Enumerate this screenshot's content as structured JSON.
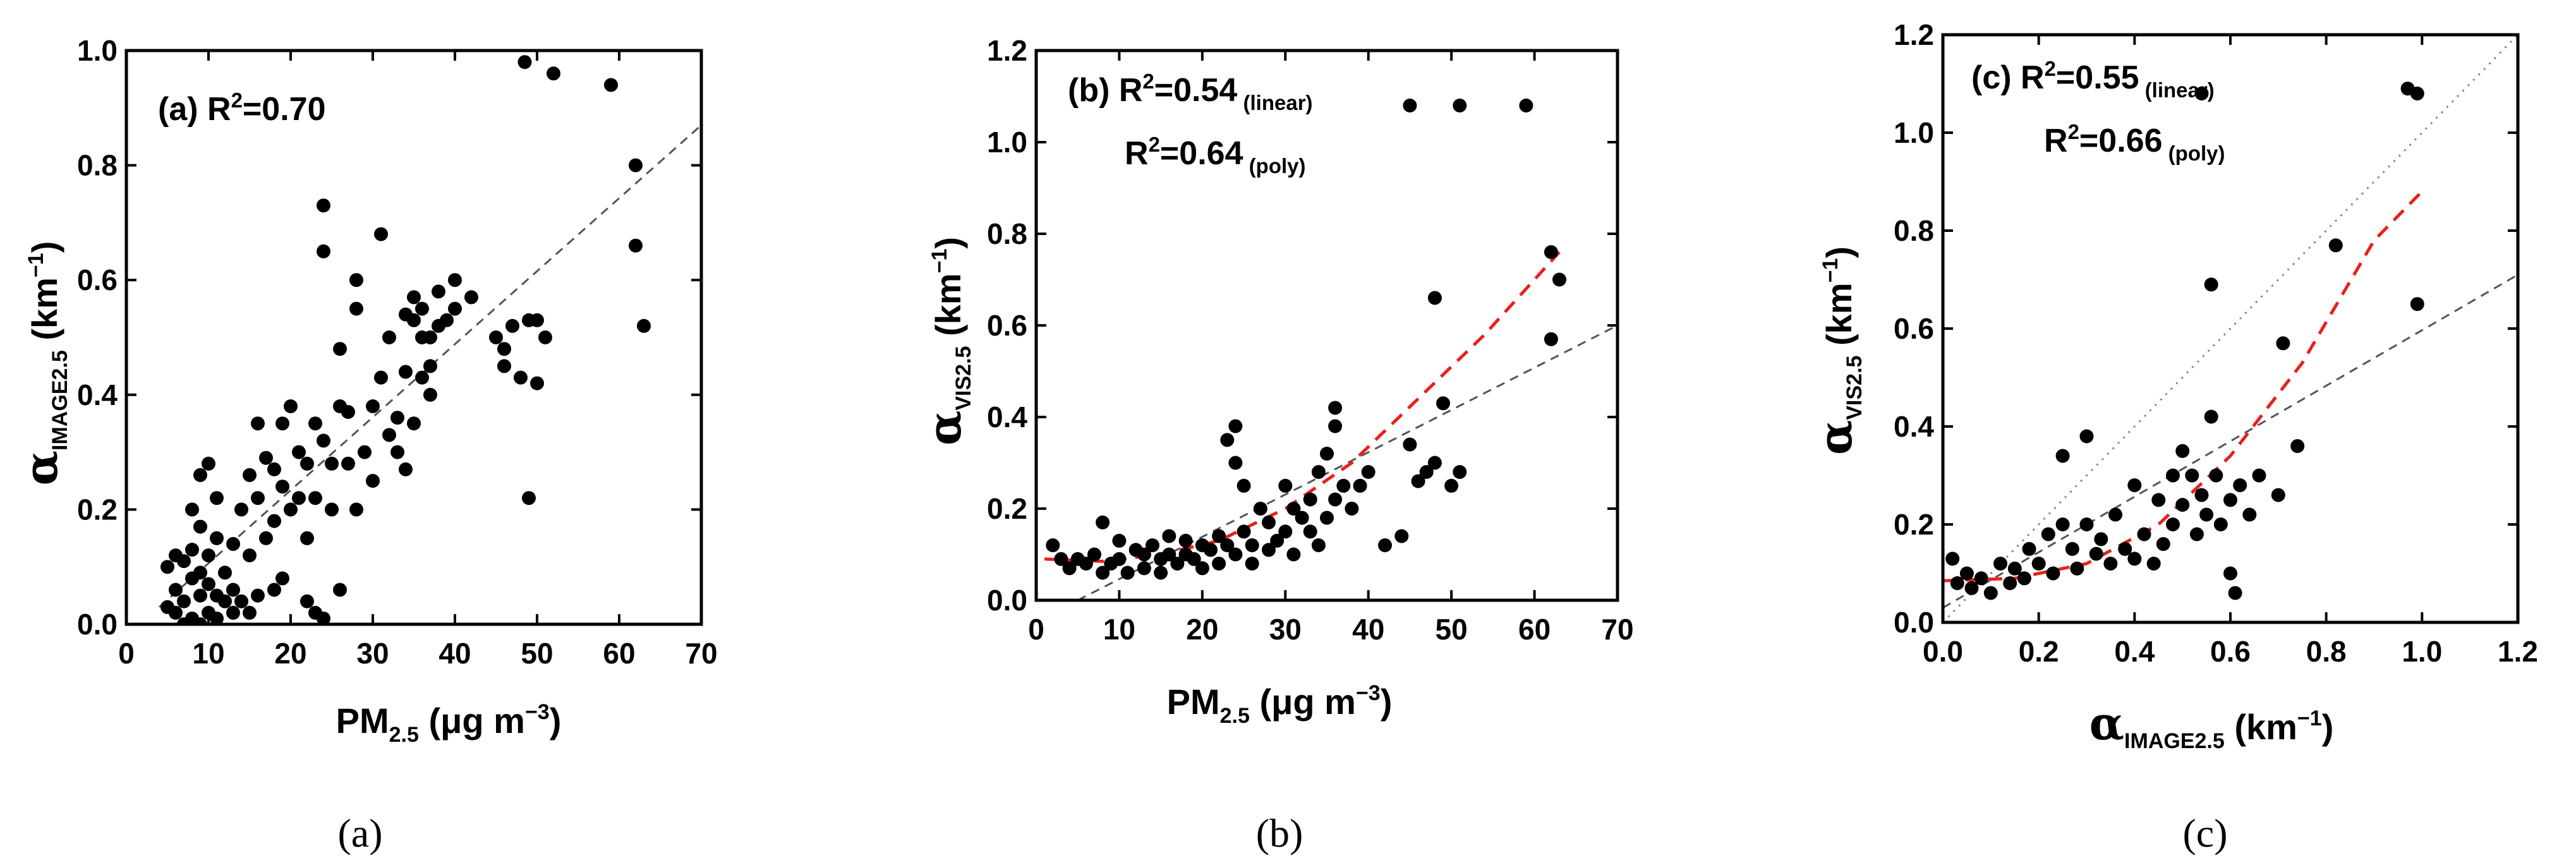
{
  "chart_data": [
    {
      "type": "scatter",
      "panel": "(a)",
      "annotation": {
        "text": "(a) R",
        "sup": "2",
        "tail": "=0.70"
      },
      "ylabel": {
        "symbol": "α",
        "sub": "IMAGE2.5",
        "unit": " (km",
        "unit_sup": "−1",
        "unit_end": ")"
      },
      "xlabel": {
        "main": "PM",
        "sub": "2.5",
        "unit": " (μg m",
        "unit_sup": "−3",
        "unit_end": ")"
      },
      "xlim": [
        0,
        70
      ],
      "ylim": [
        0,
        1.0
      ],
      "xticks": [
        0,
        10,
        20,
        30,
        40,
        50,
        60,
        70
      ],
      "xtick_labels": [
        "0",
        "10",
        "20",
        "30",
        "40",
        "50",
        "60",
        "70"
      ],
      "yticks": [
        0.0,
        0.2,
        0.4,
        0.6,
        0.8,
        1.0
      ],
      "ytick_labels": [
        "0.0",
        "0.2",
        "0.4",
        "0.6",
        "0.8",
        "1.0"
      ],
      "fits": [
        {
          "name": "linear",
          "color": "#555555",
          "dash": "14,10",
          "points": [
            [
              4,
              0.03
            ],
            [
              70,
              0.87
            ]
          ]
        }
      ],
      "points": [
        [
          5,
          0.1
        ],
        [
          5,
          0.03
        ],
        [
          6,
          0.12
        ],
        [
          6,
          0.02
        ],
        [
          6,
          0.06
        ],
        [
          7,
          0.11
        ],
        [
          7,
          0.04
        ],
        [
          7,
          0.0
        ],
        [
          8,
          0.2
        ],
        [
          8,
          0.13
        ],
        [
          8,
          0.08
        ],
        [
          8,
          0.01
        ],
        [
          9,
          0.26
        ],
        [
          9,
          0.17
        ],
        [
          9,
          0.09
        ],
        [
          9,
          0.05
        ],
        [
          9,
          0.0
        ],
        [
          10,
          0.28
        ],
        [
          10,
          0.12
        ],
        [
          10,
          0.02
        ],
        [
          10,
          0.07
        ],
        [
          11,
          0.22
        ],
        [
          11,
          0.15
        ],
        [
          11,
          0.05
        ],
        [
          11,
          0.01
        ],
        [
          12,
          0.09
        ],
        [
          12,
          0.04
        ],
        [
          13,
          0.14
        ],
        [
          13,
          0.06
        ],
        [
          13,
          0.02
        ],
        [
          14,
          0.2
        ],
        [
          14,
          0.04
        ],
        [
          15,
          0.26
        ],
        [
          15,
          0.12
        ],
        [
          15,
          0.02
        ],
        [
          16,
          0.35
        ],
        [
          16,
          0.22
        ],
        [
          16,
          0.05
        ],
        [
          17,
          0.15
        ],
        [
          17,
          0.29
        ],
        [
          18,
          0.27
        ],
        [
          18,
          0.18
        ],
        [
          18,
          0.06
        ],
        [
          19,
          0.24
        ],
        [
          19,
          0.35
        ],
        [
          19,
          0.08
        ],
        [
          20,
          0.38
        ],
        [
          20,
          0.2
        ],
        [
          21,
          0.22
        ],
        [
          21,
          0.3
        ],
        [
          22,
          0.04
        ],
        [
          22,
          0.15
        ],
        [
          22,
          0.28
        ],
        [
          23,
          0.02
        ],
        [
          23,
          0.22
        ],
        [
          23,
          0.35
        ],
        [
          24,
          0.73
        ],
        [
          24,
          0.65
        ],
        [
          24,
          0.32
        ],
        [
          24,
          0.01
        ],
        [
          25,
          0.28
        ],
        [
          25,
          0.2
        ],
        [
          26,
          0.06
        ],
        [
          26,
          0.38
        ],
        [
          26,
          0.48
        ],
        [
          27,
          0.28
        ],
        [
          27,
          0.37
        ],
        [
          28,
          0.55
        ],
        [
          28,
          0.6
        ],
        [
          28,
          0.2
        ],
        [
          29,
          0.3
        ],
        [
          30,
          0.38
        ],
        [
          30,
          0.25
        ],
        [
          31,
          0.43
        ],
        [
          31,
          0.68
        ],
        [
          32,
          0.33
        ],
        [
          32,
          0.5
        ],
        [
          33,
          0.3
        ],
        [
          33,
          0.36
        ],
        [
          34,
          0.54
        ],
        [
          34,
          0.44
        ],
        [
          34,
          0.27
        ],
        [
          35,
          0.53
        ],
        [
          35,
          0.57
        ],
        [
          35,
          0.35
        ],
        [
          36,
          0.5
        ],
        [
          36,
          0.55
        ],
        [
          36,
          0.43
        ],
        [
          37,
          0.5
        ],
        [
          37,
          0.45
        ],
        [
          37,
          0.4
        ],
        [
          38,
          0.52
        ],
        [
          38,
          0.58
        ],
        [
          39,
          0.53
        ],
        [
          40,
          0.6
        ],
        [
          40,
          0.55
        ],
        [
          42,
          0.57
        ],
        [
          45,
          0.5
        ],
        [
          46,
          0.48
        ],
        [
          46,
          0.45
        ],
        [
          47,
          0.52
        ],
        [
          48,
          0.43
        ],
        [
          49,
          0.53
        ],
        [
          49,
          0.22
        ],
        [
          50,
          0.42
        ],
        [
          50,
          0.53
        ],
        [
          51,
          0.5
        ],
        [
          48.5,
          0.98
        ],
        [
          52,
          0.96
        ],
        [
          59,
          0.94
        ],
        [
          62,
          0.8
        ],
        [
          62,
          0.66
        ],
        [
          63,
          0.52
        ]
      ]
    },
    {
      "type": "scatter",
      "panel": "(b)",
      "annotation_lines": [
        {
          "text": "(b) R",
          "sup": "2",
          "tail": "=0.54",
          "small": " (linear)"
        },
        {
          "text": "R",
          "sup": "2",
          "tail": "=0.64",
          "small": " (poly)"
        }
      ],
      "ylabel": {
        "symbol": "α",
        "sub": "VIS2.5",
        "unit": " (km",
        "unit_sup": "−1",
        "unit_end": ")"
      },
      "xlabel": {
        "main": "PM",
        "sub": "2.5",
        "unit": " (μg m",
        "unit_sup": "−3",
        "unit_end": ")"
      },
      "xlim": [
        0,
        70
      ],
      "ylim": [
        0,
        1.2
      ],
      "xticks": [
        0,
        10,
        20,
        30,
        40,
        50,
        60,
        70
      ],
      "xtick_labels": [
        "0",
        "10",
        "20",
        "30",
        "40",
        "50",
        "60",
        "70"
      ],
      "yticks": [
        0.0,
        0.2,
        0.4,
        0.6,
        0.8,
        1.0,
        1.2
      ],
      "ytick_labels": [
        "0.0",
        "0.2",
        "0.4",
        "0.6",
        "0.8",
        "1.0",
        "1.2"
      ],
      "fits": [
        {
          "name": "linear",
          "color": "#555555",
          "dash": "14,10",
          "points": [
            [
              5,
              0.0
            ],
            [
              70,
              0.6
            ]
          ]
        },
        {
          "name": "poly",
          "color": "#e8201c",
          "dash": "22,14",
          "points": [
            [
              1,
              0.09
            ],
            [
              8,
              0.085
            ],
            [
              15,
              0.1
            ],
            [
              22,
              0.13
            ],
            [
              30,
              0.2
            ],
            [
              38,
              0.3
            ],
            [
              46,
              0.44
            ],
            [
              54,
              0.58
            ],
            [
              63,
              0.76
            ]
          ]
        }
      ],
      "points": [
        [
          2,
          0.12
        ],
        [
          3,
          0.09
        ],
        [
          4,
          0.07
        ],
        [
          5,
          0.09
        ],
        [
          6,
          0.08
        ],
        [
          7,
          0.1
        ],
        [
          8,
          0.17
        ],
        [
          8,
          0.06
        ],
        [
          9,
          0.08
        ],
        [
          10,
          0.13
        ],
        [
          10,
          0.09
        ],
        [
          11,
          0.06
        ],
        [
          12,
          0.11
        ],
        [
          13,
          0.07
        ],
        [
          13,
          0.1
        ],
        [
          14,
          0.12
        ],
        [
          15,
          0.09
        ],
        [
          15,
          0.06
        ],
        [
          16,
          0.1
        ],
        [
          16,
          0.14
        ],
        [
          17,
          0.08
        ],
        [
          18,
          0.1
        ],
        [
          18,
          0.13
        ],
        [
          19,
          0.09
        ],
        [
          20,
          0.12
        ],
        [
          20,
          0.07
        ],
        [
          21,
          0.11
        ],
        [
          22,
          0.14
        ],
        [
          22,
          0.08
        ],
        [
          23,
          0.35
        ],
        [
          23,
          0.12
        ],
        [
          24,
          0.38
        ],
        [
          24,
          0.3
        ],
        [
          24,
          0.1
        ],
        [
          25,
          0.25
        ],
        [
          25,
          0.15
        ],
        [
          26,
          0.12
        ],
        [
          26,
          0.08
        ],
        [
          27,
          0.2
        ],
        [
          28,
          0.17
        ],
        [
          28,
          0.11
        ],
        [
          29,
          0.13
        ],
        [
          30,
          0.25
        ],
        [
          30,
          0.15
        ],
        [
          31,
          0.2
        ],
        [
          31,
          0.1
        ],
        [
          32,
          0.18
        ],
        [
          33,
          0.22
        ],
        [
          33,
          0.15
        ],
        [
          34,
          0.28
        ],
        [
          34,
          0.12
        ],
        [
          35,
          0.32
        ],
        [
          35,
          0.18
        ],
        [
          36,
          0.42
        ],
        [
          36,
          0.38
        ],
        [
          36,
          0.22
        ],
        [
          37,
          0.25
        ],
        [
          38,
          0.2
        ],
        [
          39,
          0.25
        ],
        [
          40,
          0.28
        ],
        [
          42,
          0.12
        ],
        [
          44,
          0.14
        ],
        [
          45,
          0.34
        ],
        [
          46,
          0.26
        ],
        [
          47,
          0.28
        ],
        [
          48,
          0.3
        ],
        [
          48,
          0.66
        ],
        [
          49,
          0.43
        ],
        [
          50,
          0.25
        ],
        [
          51,
          0.28
        ],
        [
          45,
          1.08
        ],
        [
          51,
          1.08
        ],
        [
          59,
          1.08
        ],
        [
          62,
          0.76
        ],
        [
          62,
          0.57
        ],
        [
          63,
          0.7
        ]
      ]
    },
    {
      "type": "scatter",
      "panel": "(c)",
      "annotation_lines": [
        {
          "text": "(c) R",
          "sup": "2",
          "tail": "=0.55",
          "small": " (linear)"
        },
        {
          "text": "R",
          "sup": "2",
          "tail": "=0.66",
          "small": " (poly)"
        }
      ],
      "ylabel": {
        "symbol": "α",
        "sub": "VIS2.5",
        "unit": " (km",
        "unit_sup": "−1",
        "unit_end": ")"
      },
      "xlabel": {
        "symbol": "α",
        "sub": "IMAGE2.5",
        "unit": " (km",
        "unit_sup": "−1",
        "unit_end": ")"
      },
      "xlim": [
        0,
        1.2
      ],
      "ylim": [
        0,
        1.2
      ],
      "xticks": [
        0.0,
        0.2,
        0.4,
        0.6,
        0.8,
        1.0,
        1.2
      ],
      "xtick_labels": [
        "0.0",
        "0.2",
        "0.4",
        "0.6",
        "0.8",
        "1.0",
        "1.2"
      ],
      "yticks": [
        0.0,
        0.2,
        0.4,
        0.6,
        0.8,
        1.0,
        1.2
      ],
      "ytick_labels": [
        "0.0",
        "0.2",
        "0.4",
        "0.6",
        "0.8",
        "1.0",
        "1.2"
      ],
      "fits": [
        {
          "name": "1:1",
          "color": "#888888",
          "dash": "3,9",
          "points": [
            [
              0.0,
              0.0
            ],
            [
              1.2,
              1.2
            ]
          ]
        },
        {
          "name": "linear",
          "color": "#555555",
          "dash": "14,10",
          "points": [
            [
              0.0,
              0.03
            ],
            [
              1.2,
              0.71
            ]
          ]
        },
        {
          "name": "poly",
          "color": "#e8201c",
          "dash": "22,14",
          "points": [
            [
              0.0,
              0.085
            ],
            [
              0.15,
              0.09
            ],
            [
              0.3,
              0.12
            ],
            [
              0.45,
              0.2
            ],
            [
              0.6,
              0.34
            ],
            [
              0.75,
              0.53
            ],
            [
              0.9,
              0.78
            ],
            [
              1.0,
              0.88
            ]
          ]
        }
      ],
      "points": [
        [
          0.02,
          0.13
        ],
        [
          0.03,
          0.08
        ],
        [
          0.05,
          0.1
        ],
        [
          0.06,
          0.07
        ],
        [
          0.08,
          0.09
        ],
        [
          0.1,
          0.06
        ],
        [
          0.12,
          0.12
        ],
        [
          0.14,
          0.08
        ],
        [
          0.15,
          0.11
        ],
        [
          0.17,
          0.09
        ],
        [
          0.18,
          0.15
        ],
        [
          0.2,
          0.12
        ],
        [
          0.22,
          0.18
        ],
        [
          0.23,
          0.1
        ],
        [
          0.25,
          0.34
        ],
        [
          0.25,
          0.2
        ],
        [
          0.27,
          0.15
        ],
        [
          0.28,
          0.11
        ],
        [
          0.3,
          0.38
        ],
        [
          0.3,
          0.2
        ],
        [
          0.32,
          0.14
        ],
        [
          0.33,
          0.17
        ],
        [
          0.35,
          0.12
        ],
        [
          0.36,
          0.22
        ],
        [
          0.38,
          0.15
        ],
        [
          0.4,
          0.28
        ],
        [
          0.4,
          0.13
        ],
        [
          0.42,
          0.18
        ],
        [
          0.44,
          0.12
        ],
        [
          0.45,
          0.25
        ],
        [
          0.46,
          0.16
        ],
        [
          0.48,
          0.3
        ],
        [
          0.48,
          0.2
        ],
        [
          0.5,
          0.35
        ],
        [
          0.5,
          0.24
        ],
        [
          0.52,
          0.3
        ],
        [
          0.53,
          0.18
        ],
        [
          0.54,
          0.26
        ],
        [
          0.55,
          0.22
        ],
        [
          0.56,
          0.69
        ],
        [
          0.56,
          0.42
        ],
        [
          0.57,
          0.3
        ],
        [
          0.58,
          0.2
        ],
        [
          0.6,
          0.25
        ],
        [
          0.6,
          0.1
        ],
        [
          0.61,
          0.06
        ],
        [
          0.62,
          0.28
        ],
        [
          0.64,
          0.22
        ],
        [
          0.66,
          0.3
        ],
        [
          0.7,
          0.26
        ],
        [
          0.71,
          0.57
        ],
        [
          0.74,
          0.36
        ],
        [
          0.82,
          0.77
        ],
        [
          0.54,
          1.08
        ],
        [
          0.97,
          1.09
        ],
        [
          0.99,
          1.08
        ],
        [
          0.99,
          0.65
        ]
      ]
    }
  ],
  "captions": [
    "(a)",
    "(b)",
    "(c)"
  ]
}
